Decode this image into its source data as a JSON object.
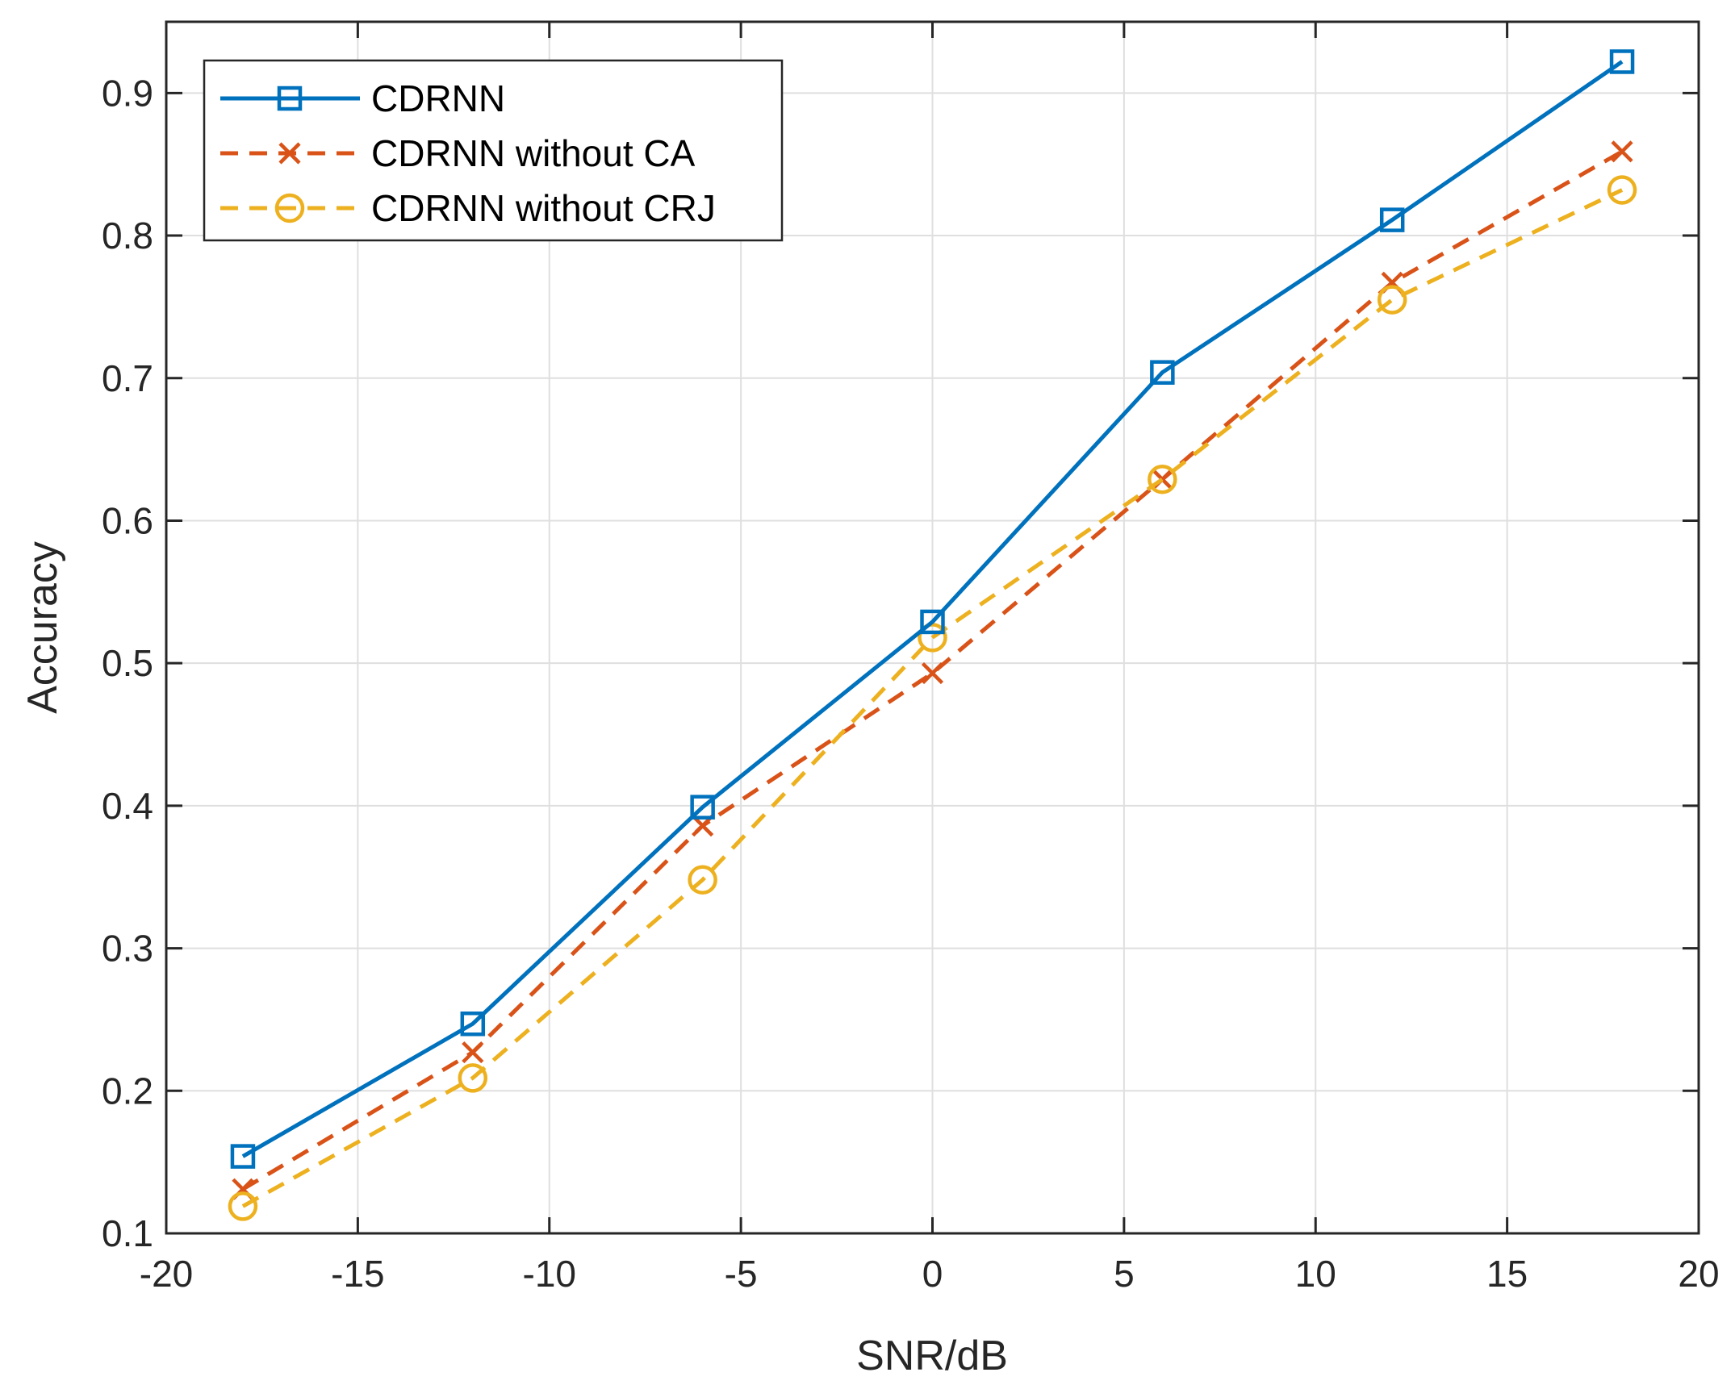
{
  "chart_data": {
    "type": "line",
    "title": "",
    "xlabel": "SNR/dB",
    "ylabel": "Accuracy",
    "xlim": [
      -20,
      20
    ],
    "ylim": [
      0.1,
      0.95
    ],
    "xticks": [
      -20,
      -15,
      -10,
      -5,
      0,
      5,
      10,
      15,
      20
    ],
    "xtick_labels": [
      "-20",
      "-15",
      "-10",
      "-5",
      "0",
      "5",
      "10",
      "15",
      "20"
    ],
    "yticks": [
      0.1,
      0.2,
      0.3,
      0.4,
      0.5,
      0.6,
      0.7,
      0.8,
      0.9
    ],
    "ytick_labels": [
      "0.1",
      "0.2",
      "0.3",
      "0.4",
      "0.5",
      "0.6",
      "0.7",
      "0.8",
      "0.9"
    ],
    "grid": true,
    "legend_position": "top-left",
    "x": [
      -18,
      -12,
      -6,
      0,
      6,
      12,
      18
    ],
    "series": [
      {
        "name": "CDRNN",
        "values": [
          0.154,
          0.247,
          0.399,
          0.529,
          0.704,
          0.811,
          0.922
        ],
        "color": "#0072BD",
        "line": "solid",
        "marker": "square"
      },
      {
        "name": "CDRNN without CA",
        "values": [
          0.131,
          0.227,
          0.386,
          0.493,
          0.629,
          0.767,
          0.859
        ],
        "color": "#D95319",
        "line": "dashed",
        "marker": "x"
      },
      {
        "name": "CDRNN without CRJ",
        "values": [
          0.119,
          0.209,
          0.348,
          0.518,
          0.629,
          0.755,
          0.832
        ],
        "color": "#EDB120",
        "line": "dashed",
        "marker": "circle"
      }
    ]
  }
}
